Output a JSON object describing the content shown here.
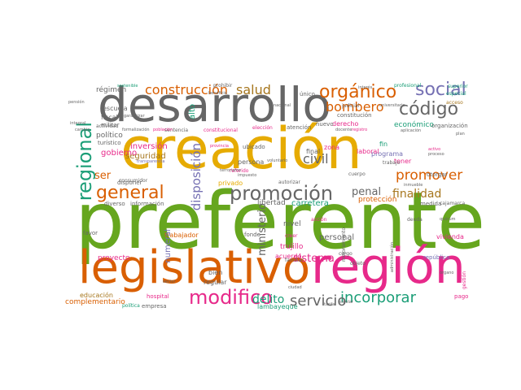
{
  "palette": {
    "green": "#66a61e",
    "gold": "#e6ab02",
    "gray": "#666666",
    "orange": "#d95f02",
    "pink": "#e7298a",
    "teal": "#1b9e77",
    "purple": "#7570b3",
    "brown": "#a6761d"
  },
  "words": [
    {
      "text": "preferente",
      "color": "green"
    },
    {
      "text": "creación",
      "color": "gold"
    },
    {
      "text": "desarrollo",
      "color": "gray"
    },
    {
      "text": "legislativo",
      "color": "orange"
    },
    {
      "text": "región",
      "color": "pink"
    },
    {
      "text": "modifico",
      "color": "pink"
    },
    {
      "text": "promoción",
      "color": "gray"
    },
    {
      "text": "general",
      "color": "orange"
    },
    {
      "text": "regional",
      "color": "teal"
    },
    {
      "text": "orgánico",
      "color": "orange"
    },
    {
      "text": "social",
      "color": "purple"
    },
    {
      "text": "código",
      "color": "gray"
    },
    {
      "text": "construcción",
      "color": "orange"
    },
    {
      "text": "salud",
      "color": "brown"
    },
    {
      "text": "bombero",
      "color": "orange"
    },
    {
      "text": "promover",
      "color": "orange"
    },
    {
      "text": "finalidad",
      "color": "brown"
    },
    {
      "text": "incorporar",
      "color": "teal"
    },
    {
      "text": "servicio",
      "color": "gray"
    },
    {
      "text": "penal",
      "color": "gray"
    },
    {
      "text": "civil",
      "color": "gray"
    },
    {
      "text": "disposición",
      "color": "purple"
    },
    {
      "text": "ministerio",
      "color": "gray"
    },
    {
      "text": "sistema",
      "color": "pink"
    },
    {
      "text": "ser",
      "color": "orange"
    },
    {
      "text": "delito",
      "color": "teal"
    },
    {
      "text": "personal",
      "color": "gray"
    },
    {
      "text": "libertad",
      "color": "gray"
    },
    {
      "text": "inversión",
      "color": "pink"
    },
    {
      "text": "seguridad",
      "color": "brown"
    },
    {
      "text": "gobierno",
      "color": "pink"
    },
    {
      "text": "régimen",
      "color": "gray"
    },
    {
      "text": "político",
      "color": "gray"
    },
    {
      "text": "fiscal",
      "color": "gray"
    },
    {
      "text": "militar",
      "color": "gray"
    },
    {
      "text": "escuela",
      "color": "gray"
    },
    {
      "text": "alto",
      "color": "teal"
    },
    {
      "text": "trabajador",
      "color": "orange"
    },
    {
      "text": "numeral",
      "color": "purple"
    },
    {
      "text": "proyecto",
      "color": "pink"
    },
    {
      "text": "favor",
      "color": "gray"
    },
    {
      "text": "educación",
      "color": "brown"
    },
    {
      "text": "complementario",
      "color": "orange"
    },
    {
      "text": "trujillo",
      "color": "pink"
    },
    {
      "text": "acuerdo",
      "color": "pink"
    },
    {
      "text": "nivel",
      "color": "gray"
    },
    {
      "text": "carretera",
      "color": "teal"
    },
    {
      "text": "protección",
      "color": "orange"
    },
    {
      "text": "económico",
      "color": "teal"
    },
    {
      "text": "zona",
      "color": "pink"
    },
    {
      "text": "final",
      "color": "gray"
    },
    {
      "text": "derecho",
      "color": "pink"
    },
    {
      "text": "programa",
      "color": "purple"
    },
    {
      "text": "laboral",
      "color": "pink"
    },
    {
      "text": "república",
      "color": "purple"
    },
    {
      "text": "vivienda",
      "color": "pink"
    },
    {
      "text": "tener",
      "color": "pink"
    },
    {
      "text": "fin",
      "color": "teal"
    },
    {
      "text": "otorgar",
      "color": "gray"
    },
    {
      "text": "persona",
      "color": "gray"
    },
    {
      "text": "ubicado",
      "color": "gray"
    },
    {
      "text": "privado",
      "color": "gold"
    },
    {
      "text": "fondo",
      "color": "gray"
    },
    {
      "text": "regular",
      "color": "gray"
    },
    {
      "text": "bien",
      "color": "gray"
    },
    {
      "text": "hospital",
      "color": "pink"
    },
    {
      "text": "empresa",
      "color": "gray"
    },
    {
      "text": "lambayeque",
      "color": "teal"
    },
    {
      "text": "pago",
      "color": "pink"
    },
    {
      "text": "cajamarca",
      "color": "gray"
    },
    {
      "text": "medida",
      "color": "gray"
    },
    {
      "text": "organización",
      "color": "gray"
    },
    {
      "text": "turístico",
      "color": "gray"
    },
    {
      "text": "diverso",
      "color": "gray"
    },
    {
      "text": "información",
      "color": "gray"
    },
    {
      "text": "disponer",
      "color": "gray"
    },
    {
      "text": "sentencia",
      "color": "gray"
    },
    {
      "text": "atención",
      "color": "gray"
    },
    {
      "text": "elección",
      "color": "pink"
    },
    {
      "text": "constitucional",
      "color": "pink"
    },
    {
      "text": "prohibir",
      "color": "gray"
    },
    {
      "text": "beneficio",
      "color": "gray"
    },
    {
      "text": "nuevo",
      "color": "gray"
    },
    {
      "text": "único",
      "color": "gray"
    },
    {
      "text": "constitución",
      "color": "gray"
    },
    {
      "text": "judicial",
      "color": "gray"
    },
    {
      "text": "acceso",
      "color": "brown"
    },
    {
      "text": "especial",
      "color": "teal"
    },
    {
      "text": "profesional",
      "color": "teal"
    },
    {
      "text": "superior",
      "color": "teal"
    },
    {
      "text": "actividad",
      "color": "gray"
    },
    {
      "text": "garantizar",
      "color": "gray"
    },
    {
      "text": "familiar",
      "color": "gray"
    },
    {
      "text": "creer",
      "color": "pink"
    },
    {
      "text": "cuerpo",
      "color": "gray"
    },
    {
      "text": "trabajo",
      "color": "gray"
    },
    {
      "text": "sector",
      "color": "gray"
    },
    {
      "text": "referido",
      "color": "pink"
    },
    {
      "text": "autorizar",
      "color": "gray"
    },
    {
      "text": "docente",
      "color": "gray"
    },
    {
      "text": "consumidor",
      "color": "gray"
    },
    {
      "text": "transparencia",
      "color": "purple"
    },
    {
      "text": "población",
      "color": "pink"
    },
    {
      "text": "acción",
      "color": "pink"
    },
    {
      "text": "política",
      "color": "teal"
    },
    {
      "text": "cargo",
      "color": "gray"
    },
    {
      "text": "objeto",
      "color": "gray"
    },
    {
      "text": "gestión",
      "color": "pink"
    },
    {
      "text": "ciudad",
      "color": "gray"
    },
    {
      "text": "mejoramiento",
      "color": "gray"
    },
    {
      "text": "deuda",
      "color": "gray"
    },
    {
      "text": "plan",
      "color": "gray"
    },
    {
      "text": "activo",
      "color": "pink"
    },
    {
      "text": "proceso",
      "color": "gray"
    },
    {
      "text": "interés",
      "color": "gray"
    },
    {
      "text": "sostenible",
      "color": "teal"
    },
    {
      "text": "pensión",
      "color": "gray"
    },
    {
      "text": "integral",
      "color": "gray"
    },
    {
      "text": "cambio",
      "color": "gray"
    },
    {
      "text": "aplicación",
      "color": "gray"
    },
    {
      "text": "registro",
      "color": "pink"
    },
    {
      "text": "universitario",
      "color": "gray"
    },
    {
      "text": "administración",
      "color": "gray"
    },
    {
      "text": "quórum",
      "color": "gray"
    },
    {
      "text": "inmueble",
      "color": "gray"
    },
    {
      "text": "formalización",
      "color": "gray"
    },
    {
      "text": "terrorismo",
      "color": "gray"
    },
    {
      "text": "impuesto",
      "color": "gray"
    },
    {
      "text": "voluntario",
      "color": "gray"
    },
    {
      "text": "nacional",
      "color": "gray"
    },
    {
      "text": "provincia",
      "color": "pink"
    },
    {
      "text": "tarifa",
      "color": "gray"
    },
    {
      "text": "escolar",
      "color": "gray"
    },
    {
      "text": "órgano",
      "color": "gray"
    }
  ]
}
